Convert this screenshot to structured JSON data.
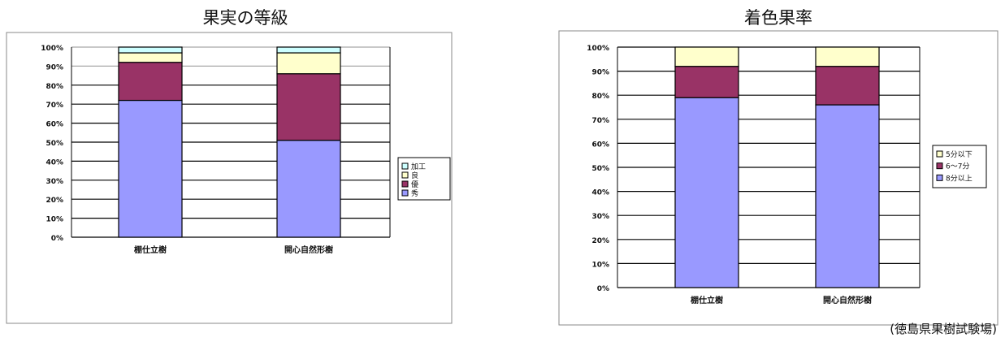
{
  "chart_data": [
    {
      "type": "bar",
      "stacked": true,
      "title": "果実の等級",
      "categories": [
        "棚仕立樹",
        "開心自然形樹"
      ],
      "series": [
        {
          "name": "秀",
          "values": [
            72,
            51
          ],
          "color": "#9999ff"
        },
        {
          "name": "優",
          "values": [
            20,
            35
          ],
          "color": "#993366"
        },
        {
          "name": "良",
          "values": [
            5,
            11
          ],
          "color": "#ffffcc"
        },
        {
          "name": "加工",
          "values": [
            3,
            3
          ],
          "color": "#ccffff"
        }
      ],
      "y_ticks": [
        "0%",
        "10%",
        "20%",
        "30%",
        "40%",
        "50%",
        "60%",
        "70%",
        "80%",
        "90%",
        "100%"
      ],
      "ylim": [
        0,
        100
      ],
      "legend_position": "right"
    },
    {
      "type": "bar",
      "stacked": true,
      "title": "着色果率",
      "categories": [
        "棚仕立樹",
        "開心自然形樹"
      ],
      "series": [
        {
          "name": "8分以上",
          "values": [
            79,
            76
          ],
          "color": "#9999ff"
        },
        {
          "name": "6～7分",
          "values": [
            13,
            16
          ],
          "color": "#993366"
        },
        {
          "name": "5分以下",
          "values": [
            8,
            8
          ],
          "color": "#ffffcc"
        }
      ],
      "y_ticks": [
        "0%",
        "10%",
        "20%",
        "30%",
        "40%",
        "50%",
        "60%",
        "70%",
        "80%",
        "90%",
        "100%"
      ],
      "ylim": [
        0,
        100
      ],
      "legend_position": "right"
    }
  ],
  "source_note": "(徳島県果樹試験場)"
}
